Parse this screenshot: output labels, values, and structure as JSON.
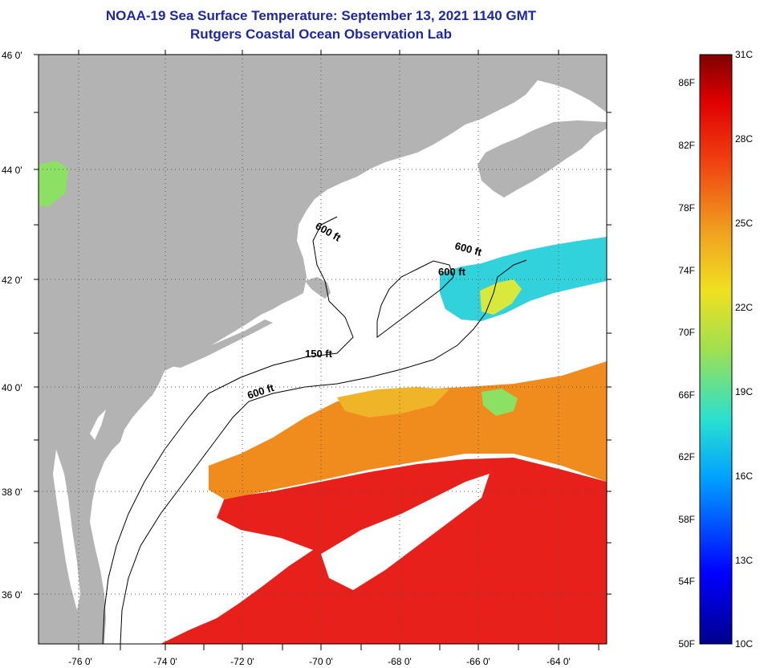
{
  "header": {
    "title": "NOAA-19 Sea Surface Temperature:  September 13, 2021 1140 GMT",
    "subtitle": "Rutgers Coastal Ocean Observation Lab"
  },
  "map": {
    "lat_labels": [
      "46 0'",
      "44 0'",
      "42 0'",
      "40 0'",
      "38 0'",
      "36 0'"
    ],
    "lon_labels": [
      "-76 0'",
      "-74 0'",
      "-72 0'",
      "-70 0'",
      "-68 0'",
      "-66 0'",
      "-64 0'"
    ],
    "contour_labels": [
      "600 ft",
      "600 ft",
      "600 ft",
      "150 ft",
      "600 ft"
    ]
  },
  "colorbar": {
    "fahrenheit_labels": [
      "86F",
      "82F",
      "78F",
      "74F",
      "70F",
      "66F",
      "62F",
      "58F",
      "54F",
      "50F"
    ],
    "celsius_labels": [
      "31C",
      "28C",
      "25C",
      "22C",
      "19C",
      "16C",
      "13C",
      "10C"
    ]
  },
  "colors": {
    "land": "#b3b3b3",
    "title": "#1e28a0",
    "warm": "#e8201c",
    "orange": "#f08c1e",
    "cool": "#32d2dc"
  }
}
